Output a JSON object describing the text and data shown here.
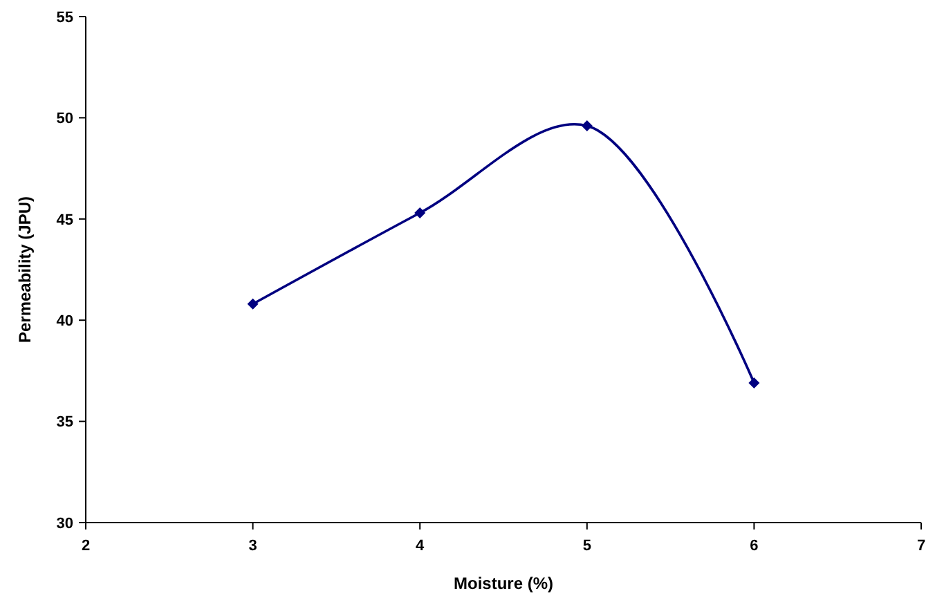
{
  "chart_data": {
    "type": "line",
    "xlabel": "Moisture (%)",
    "ylabel": "Permeability (JPU)",
    "x": [
      3,
      4,
      5,
      6
    ],
    "series": [
      {
        "color": "#000080",
        "values": [
          40.8,
          45.3,
          49.6,
          36.9
        ]
      }
    ],
    "xlim": [
      2,
      7
    ],
    "xticks": [
      2,
      3,
      4,
      5,
      6,
      7
    ],
    "ylim": [
      30,
      55
    ],
    "yticks": [
      30,
      35,
      40,
      45,
      50,
      55
    ],
    "grid": false,
    "marker": "diamond",
    "line_style": "solid"
  }
}
